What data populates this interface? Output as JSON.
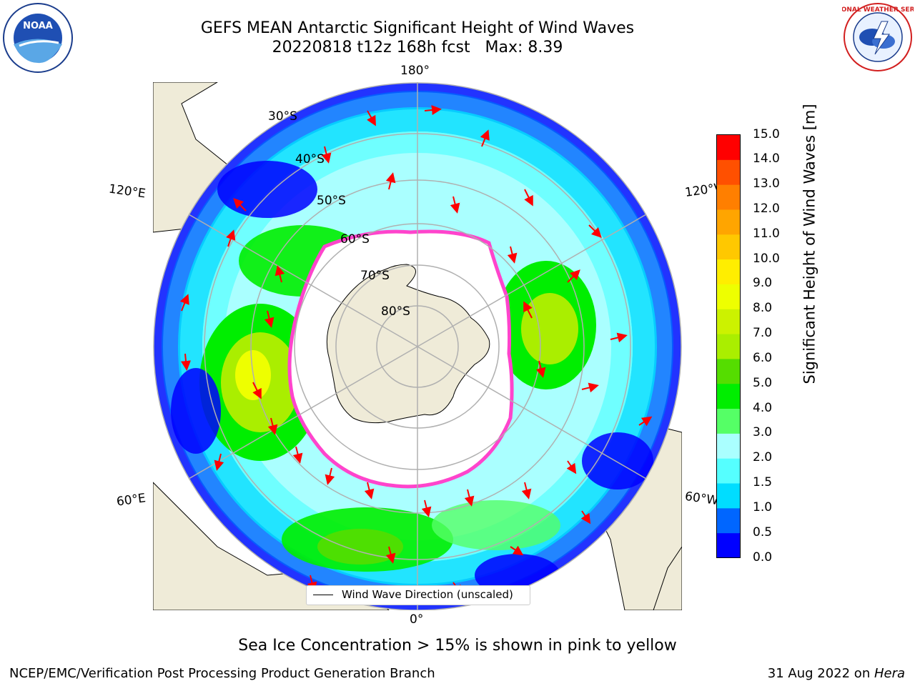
{
  "title_line1": "GEFS MEAN Antarctic Significant Height of Wind Waves",
  "title_line2": "20220818 t12z 168h fcst   Max: 8.39",
  "subtitle": "Sea Ice Concentration > 15% is shown in pink to yellow",
  "footer_left": "NCEP/EMC/Verification Post Processing Product Generation Branch",
  "footer_right_prefix": "31 Aug 2022 on ",
  "footer_right_machine": "Hera",
  "logos": {
    "left": "NOAA",
    "right": "NATIONAL WEATHER SERVICE",
    "right_icon": "nws-logo-icon",
    "left_icon": "noaa-logo-icon"
  },
  "legend": {
    "label": "Wind Wave Direction (unscaled)"
  },
  "longitude_labels": {
    "top": "180°",
    "bottom": "0°",
    "left_upper": "120°E",
    "left_lower": "60°E",
    "right_upper": "120°W",
    "right_lower": "60°W"
  },
  "latitude_labels": [
    "30°S",
    "40°S",
    "50°S",
    "60°S",
    "70°S",
    "80°S"
  ],
  "colorbar": {
    "title": "Significant Height of Wind Waves [m]",
    "ticks": [
      "0.0",
      "0.5",
      "1.0",
      "1.5",
      "2.0",
      "3.0",
      "4.0",
      "5.0",
      "6.0",
      "7.0",
      "8.0",
      "9.0",
      "10.0",
      "11.0",
      "12.0",
      "13.0",
      "14.0",
      "15.0"
    ],
    "colors": [
      "#0000ff",
      "#0066ff",
      "#00ddff",
      "#55ffff",
      "#aaffff",
      "#55ff66",
      "#00ee00",
      "#55dd00",
      "#aaee00",
      "#ccf200",
      "#eeff00",
      "#ffee00",
      "#ffc800",
      "#ffa500",
      "#ff7f00",
      "#ff5000",
      "#ff0000"
    ]
  },
  "colors": {
    "land": "#efebd8",
    "ice_edge": "#ff44cc",
    "arrow": "#ff0000",
    "grid": "#b0b0b0"
  }
}
